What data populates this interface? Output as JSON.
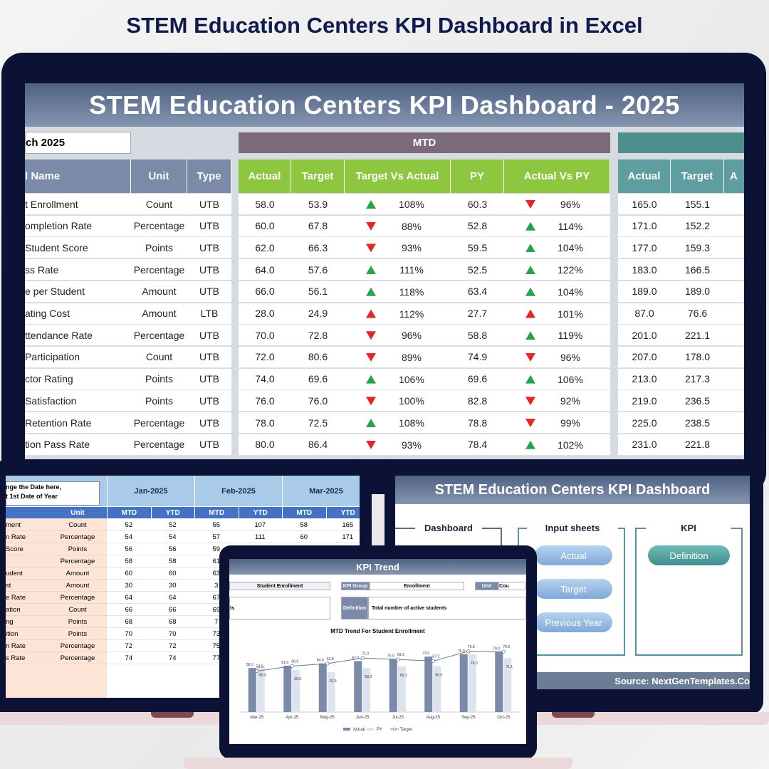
{
  "header": {
    "title": "STEM Education Centers KPI Dashboard in Excel"
  },
  "dashboard": {
    "title": "STEM Education Centers KPI Dashboard - 2025",
    "period": "ch 2025",
    "mtd_label": "MTD",
    "columns": [
      "l Name",
      "Unit",
      "Type"
    ],
    "mtd_columns": [
      "Actual",
      "Target",
      "Target Vs Actual",
      "PY",
      "Actual Vs PY"
    ],
    "ytd_columns": [
      "Actual",
      "Target",
      "A"
    ],
    "rows": [
      [
        "t Enrollment",
        "Count",
        "UTB",
        "58.0",
        "53.9",
        "up",
        "108%",
        "60.3",
        "down",
        "96%",
        "165.0",
        "155.1"
      ],
      [
        "ompletion Rate",
        "Percentage",
        "UTB",
        "60.0",
        "67.8",
        "down",
        "88%",
        "52.8",
        "up",
        "114%",
        "171.0",
        "152.2"
      ],
      [
        "Student Score",
        "Points",
        "UTB",
        "62.0",
        "66.3",
        "down",
        "93%",
        "59.5",
        "up",
        "104%",
        "177.0",
        "159.3"
      ],
      [
        "ss Rate",
        "Percentage",
        "UTB",
        "64.0",
        "57.6",
        "up",
        "111%",
        "52.5",
        "up",
        "122%",
        "183.0",
        "166.5"
      ],
      [
        "e per Student",
        "Amount",
        "UTB",
        "66.0",
        "56.1",
        "up",
        "118%",
        "63.4",
        "up",
        "104%",
        "189.0",
        "189.0"
      ],
      [
        "ating Cost",
        "Amount",
        "LTB",
        "28.0",
        "24.9",
        "up",
        "112%",
        "27.7",
        "up",
        "101%",
        "87.0",
        "76.6"
      ],
      [
        "ttendance Rate",
        "Percentage",
        "UTB",
        "70.0",
        "72.8",
        "down",
        "96%",
        "58.8",
        "up",
        "119%",
        "201.0",
        "221.1"
      ],
      [
        "Participation",
        "Count",
        "UTB",
        "72.0",
        "80.6",
        "down",
        "89%",
        "74.9",
        "down",
        "96%",
        "207.0",
        "178.0"
      ],
      [
        "ctor Rating",
        "Points",
        "UTB",
        "74.0",
        "69.6",
        "up",
        "106%",
        "69.6",
        "up",
        "106%",
        "213.0",
        "217.3"
      ],
      [
        "Satisfaction",
        "Points",
        "UTB",
        "76.0",
        "76.0",
        "down",
        "100%",
        "82.8",
        "down",
        "92%",
        "219.0",
        "236.5"
      ],
      [
        "Retention Rate",
        "Percentage",
        "UTB",
        "78.0",
        "72.5",
        "up",
        "108%",
        "78.8",
        "down",
        "99%",
        "225.0",
        "238.5"
      ],
      [
        "tion Pass Rate",
        "Percentage",
        "UTB",
        "80.0",
        "86.4",
        "down",
        "93%",
        "78.4",
        "up",
        "102%",
        "231.0",
        "221.8"
      ]
    ]
  },
  "data_sheet": {
    "note_lines": [
      "nge the Date here,",
      "t 1st Date of Year"
    ],
    "months": [
      "Jan-2025",
      "Feb-2025",
      "Mar-2025"
    ],
    "unit_header": "Unit",
    "sub_headers": [
      "MTD",
      "YTD",
      "MTD",
      "YTD",
      "MTD",
      "YTD"
    ],
    "rows": [
      [
        "ment",
        "Count",
        "52",
        "52",
        "55",
        "107",
        "58",
        "165"
      ],
      [
        "n Rate",
        "Percentage",
        "54",
        "54",
        "57",
        "111",
        "60",
        "171"
      ],
      [
        "Score",
        "Points",
        "56",
        "56",
        "59",
        "",
        "",
        ""
      ],
      [
        "",
        "Percentage",
        "58",
        "58",
        "61",
        "",
        "",
        ""
      ],
      [
        "udent",
        "Amount",
        "60",
        "60",
        "63",
        "",
        "",
        ""
      ],
      [
        "st",
        "Amount",
        "30",
        "30",
        "3",
        "",
        "",
        ""
      ],
      [
        "e Rate",
        "Percentage",
        "64",
        "64",
        "67",
        "",
        "",
        ""
      ],
      [
        "ation",
        "Count",
        "66",
        "66",
        "69",
        "",
        "",
        ""
      ],
      [
        "ng",
        "Points",
        "68",
        "68",
        "7",
        "",
        "",
        ""
      ],
      [
        "ition",
        "Points",
        "70",
        "70",
        "73",
        "",
        "",
        ""
      ],
      [
        "n Rate",
        "Percentage",
        "72",
        "72",
        "75",
        "",
        "",
        ""
      ],
      [
        "s Rate",
        "Percentage",
        "74",
        "74",
        "77",
        "",
        "",
        ""
      ]
    ]
  },
  "home": {
    "title": "STEM Education Centers KPI Dashboard",
    "sections": [
      "Dashboard",
      "Input sheets",
      "KPI"
    ],
    "input_buttons": [
      "Actual",
      "Target",
      "Previous Year"
    ],
    "kpi_buttons": [
      "Definition"
    ],
    "source": "Source: NextGenTemplates.Co"
  },
  "trend": {
    "title": "KPI Trend",
    "kpi": "Student Enrollment",
    "group_label": "KPI Group",
    "group": "Enrollment",
    "unit_label": "Unit",
    "unit": "Cou",
    "formula_fragment": "ts",
    "definition_label": "Definition",
    "definition": "Total number of active students"
  },
  "chart_data": {
    "type": "bar",
    "title": "MTD Trend For Student Enrollment",
    "categories": [
      "Mar-25",
      "Apr-25",
      "May-25",
      "Jun-25",
      "Jul-25",
      "Aug-25",
      "Sep-25",
      "Oct-25"
    ],
    "series": [
      {
        "name": "Actual",
        "color": "#7a8aa8",
        "values": [
          58,
          61,
          64,
          67,
          70,
          73,
          76,
          79
        ],
        "value_labels": [
          "58.0",
          "61.0",
          "64.0",
          "67.0",
          "70.0",
          "73.0",
          "76.0",
          "79.0"
        ]
      },
      {
        "name": "PY",
        "color": "#dde3ec",
        "values": [
          60.3,
          55.5,
          52.5,
          58.3,
          60.2,
          60.6,
          76,
          71.1
        ],
        "value_labels": [
          "60.3",
          "55.5",
          "52.5",
          "58.3",
          "60.2",
          "60.6",
          "76.0",
          "71.1"
        ]
      },
      {
        "name": "Target",
        "color": "#6b7b8c",
        "type": "line",
        "values": [
          53.9,
          60.5,
          63.8,
          71,
          69.3,
          67.2,
          79.9,
          79.6
        ],
        "value_labels": [
          "53.9",
          "60.5",
          "63.8",
          "71.0",
          "69.3",
          "67.2",
          "79.9",
          "79.6"
        ]
      }
    ],
    "ylim": [
      0,
      90
    ]
  }
}
